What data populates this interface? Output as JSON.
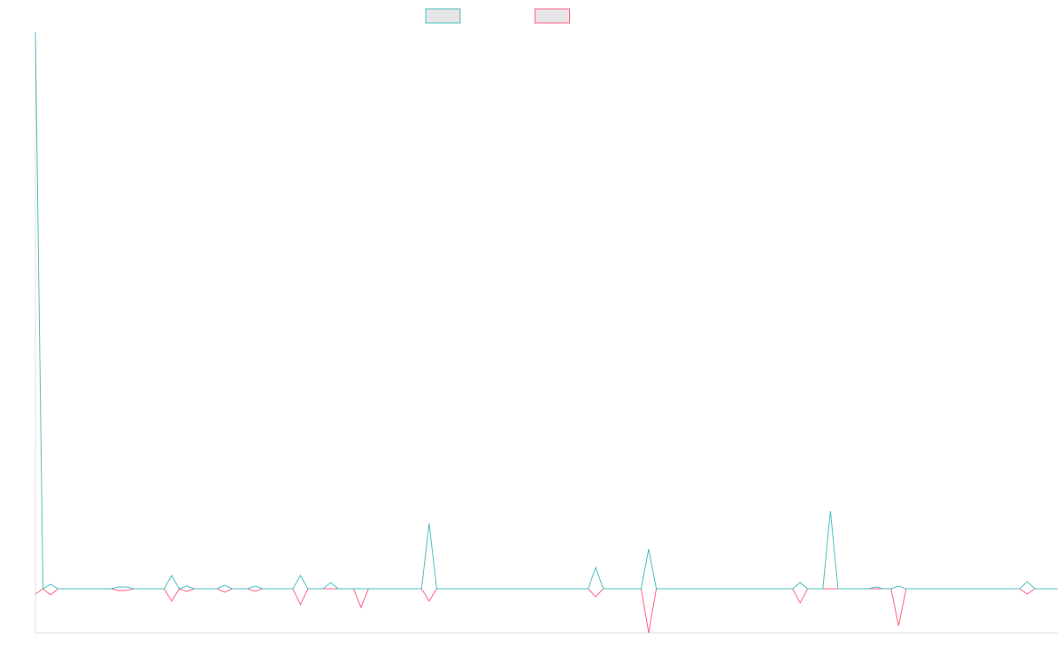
{
  "chart_data": {
    "type": "line",
    "ylim": [
      -5,
      63
    ],
    "series": [
      {
        "color": "#4bc0c0",
        "values": [
          63,
          0,
          0.5,
          0,
          0,
          0,
          0,
          0,
          0,
          0,
          0,
          0.2,
          0.2,
          0,
          0,
          0,
          0,
          0,
          1.5,
          0,
          0.3,
          0,
          0,
          0,
          0,
          0.4,
          0,
          0,
          0,
          0.3,
          0,
          0,
          0,
          0,
          0,
          1.5,
          0,
          0,
          0,
          0.7,
          0,
          0,
          0,
          0,
          0,
          0,
          0,
          0,
          0,
          0,
          0,
          0,
          7.4,
          0,
          0,
          0,
          0,
          0,
          0,
          0,
          0,
          0,
          0,
          0,
          0,
          0,
          0,
          0,
          0,
          0,
          0,
          0,
          0,
          0,
          2.4,
          0,
          0,
          0,
          0,
          0,
          0,
          4.5,
          0,
          0,
          0,
          0,
          0,
          0,
          0,
          0,
          0,
          0,
          0,
          0,
          0,
          0,
          0,
          0,
          0,
          0,
          0,
          0.7,
          0,
          0,
          0,
          8.8,
          0,
          0,
          0,
          0,
          0,
          0.2,
          0,
          0,
          0.3,
          0,
          0,
          0,
          0,
          0,
          0,
          0,
          0,
          0,
          0,
          0,
          0,
          0,
          0,
          0,
          0,
          0.8,
          0,
          0,
          0,
          0
        ]
      },
      {
        "color": "#ff6384",
        "values": [
          -0.6,
          0,
          -0.7,
          0,
          0,
          0,
          0,
          0,
          0,
          0,
          0,
          -0.2,
          -0.2,
          0,
          0,
          0,
          0,
          0,
          -1.4,
          0,
          -0.3,
          0,
          0,
          0,
          0,
          -0.4,
          0,
          0,
          0,
          -0.3,
          0,
          0,
          0,
          0,
          0,
          -1.8,
          0,
          0,
          0,
          0,
          0,
          0,
          0,
          -2.1,
          0,
          0,
          0,
          0,
          0,
          0,
          0,
          0,
          -1.4,
          0,
          0,
          0,
          0,
          0,
          0,
          0,
          0,
          0,
          0,
          0,
          0,
          0,
          0,
          0,
          0,
          0,
          0,
          0,
          0,
          0,
          -0.9,
          0,
          0,
          0,
          0,
          0,
          0,
          -5,
          0,
          0,
          0,
          0,
          0,
          0,
          0,
          0,
          0,
          0,
          0,
          0,
          0,
          0,
          0,
          0,
          0,
          0,
          0,
          -1.6,
          0,
          0,
          0,
          0,
          0,
          0,
          0,
          0,
          0,
          0,
          0,
          0,
          -4.2,
          0,
          0,
          0,
          0,
          0,
          0,
          0,
          0,
          0,
          0,
          0,
          0,
          0,
          0,
          0,
          0,
          -0.6,
          0,
          0,
          0,
          0
        ]
      }
    ]
  }
}
